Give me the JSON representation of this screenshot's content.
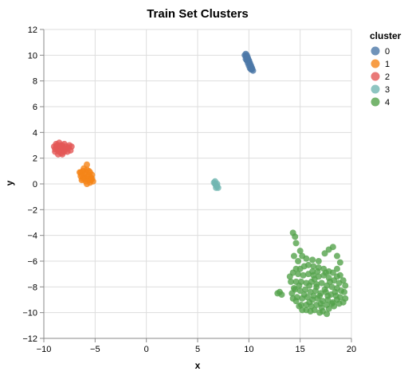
{
  "chart_data": {
    "type": "scatter",
    "title": "Train Set Clusters",
    "xlabel": "x",
    "ylabel": "y",
    "xlim": [
      -10,
      20
    ],
    "ylim": [
      -12,
      12
    ],
    "x_ticks": [
      -10,
      -5,
      0,
      5,
      10,
      15,
      20
    ],
    "y_ticks": [
      -12,
      -10,
      -8,
      -6,
      -4,
      -2,
      0,
      2,
      4,
      6,
      8,
      10,
      12
    ],
    "x_tick_labels": [
      "−10",
      "−5",
      "0",
      "5",
      "10",
      "15",
      "20"
    ],
    "y_tick_labels": [
      "−12",
      "−10",
      "−8",
      "−6",
      "−4",
      "−2",
      "0",
      "2",
      "4",
      "6",
      "8",
      "10",
      "12"
    ],
    "grid": true,
    "legend": {
      "title": "cluster",
      "position": "right",
      "entries": [
        "0",
        "1",
        "2",
        "3",
        "4"
      ]
    },
    "series": [
      {
        "name": "0",
        "color": "#4c78a8",
        "points": [
          [
            9.7,
            10.1
          ],
          [
            9.8,
            10.0
          ],
          [
            9.8,
            9.9
          ],
          [
            9.9,
            9.8
          ],
          [
            9.9,
            9.7
          ],
          [
            10.0,
            9.6
          ],
          [
            10.0,
            9.5
          ],
          [
            10.1,
            9.4
          ],
          [
            10.1,
            9.3
          ],
          [
            10.2,
            9.2
          ],
          [
            10.2,
            9.1
          ],
          [
            10.3,
            9.0
          ],
          [
            10.3,
            8.9
          ],
          [
            10.4,
            8.8
          ],
          [
            9.7,
            9.9
          ],
          [
            9.8,
            9.6
          ],
          [
            9.9,
            9.4
          ],
          [
            10.0,
            9.2
          ],
          [
            9.6,
            10.0
          ],
          [
            9.7,
            9.7
          ],
          [
            10.1,
            9.0
          ],
          [
            10.2,
            8.9
          ]
        ]
      },
      {
        "name": "1",
        "color": "#f58518",
        "points": [
          [
            -6.5,
            0.9
          ],
          [
            -6.4,
            0.6
          ],
          [
            -6.3,
            0.3
          ],
          [
            -6.2,
            1.0
          ],
          [
            -6.1,
            0.5
          ],
          [
            -6.0,
            0.8
          ],
          [
            -5.9,
            0.2
          ],
          [
            -5.8,
            1.1
          ],
          [
            -5.7,
            0.6
          ],
          [
            -5.6,
            0.3
          ],
          [
            -5.5,
            0.9
          ],
          [
            -5.4,
            0.5
          ],
          [
            -5.3,
            0.7
          ],
          [
            -5.2,
            0.2
          ],
          [
            -5.8,
            1.5
          ],
          [
            -6.1,
            1.2
          ],
          [
            -5.5,
            0.1
          ],
          [
            -5.7,
            0.4
          ],
          [
            -6.3,
            0.7
          ],
          [
            -6.0,
            0.4
          ],
          [
            -5.9,
            0.9
          ],
          [
            -5.6,
            0.7
          ],
          [
            -5.4,
            0.3
          ],
          [
            -6.2,
            0.4
          ],
          [
            -5.8,
            0.0
          ],
          [
            -5.3,
            0.4
          ],
          [
            -6.4,
            0.9
          ],
          [
            -5.6,
            1.0
          ]
        ]
      },
      {
        "name": "2",
        "color": "#e45756",
        "points": [
          [
            -9.0,
            2.9
          ],
          [
            -8.9,
            2.5
          ],
          [
            -8.8,
            3.1
          ],
          [
            -8.7,
            2.7
          ],
          [
            -8.6,
            2.3
          ],
          [
            -8.5,
            3.2
          ],
          [
            -8.4,
            2.8
          ],
          [
            -8.3,
            2.4
          ],
          [
            -8.2,
            3.0
          ],
          [
            -8.1,
            2.6
          ],
          [
            -8.0,
            3.1
          ],
          [
            -7.9,
            2.7
          ],
          [
            -7.8,
            2.9
          ],
          [
            -7.6,
            2.8
          ],
          [
            -7.4,
            2.6
          ],
          [
            -7.3,
            2.9
          ],
          [
            -8.6,
            2.6
          ],
          [
            -8.8,
            2.9
          ],
          [
            -8.4,
            3.0
          ],
          [
            -8.2,
            2.3
          ],
          [
            -8.0,
            2.5
          ],
          [
            -8.5,
            2.5
          ],
          [
            -8.7,
            3.0
          ],
          [
            -8.3,
            2.9
          ],
          [
            -7.7,
            2.5
          ],
          [
            -8.9,
            2.7
          ],
          [
            -8.1,
            2.8
          ],
          [
            -7.5,
            3.0
          ]
        ]
      },
      {
        "name": "3",
        "color": "#72b7b2",
        "points": [
          [
            6.6,
            0.1
          ],
          [
            6.7,
            0.0
          ],
          [
            6.8,
            -0.1
          ],
          [
            6.9,
            -0.2
          ],
          [
            7.0,
            -0.3
          ],
          [
            6.7,
            0.2
          ],
          [
            6.8,
            -0.3
          ],
          [
            6.9,
            0.0
          ]
        ]
      },
      {
        "name": "4",
        "color": "#54a24b",
        "points": [
          [
            14.3,
            -3.8
          ],
          [
            14.5,
            -4.1
          ],
          [
            14.6,
            -4.6
          ],
          [
            15.0,
            -5.2
          ],
          [
            14.4,
            -5.6
          ],
          [
            15.2,
            -5.6
          ],
          [
            14.8,
            -6.0
          ],
          [
            15.6,
            -5.8
          ],
          [
            16.2,
            -5.9
          ],
          [
            16.8,
            -6.0
          ],
          [
            17.4,
            -5.4
          ],
          [
            17.8,
            -5.1
          ],
          [
            18.2,
            -4.9
          ],
          [
            18.6,
            -5.6
          ],
          [
            18.9,
            -6.1
          ],
          [
            18.6,
            -6.6
          ],
          [
            18.9,
            -7.1
          ],
          [
            19.2,
            -7.5
          ],
          [
            19.4,
            -7.9
          ],
          [
            19.3,
            -8.4
          ],
          [
            19.4,
            -8.9
          ],
          [
            19.2,
            -9.2
          ],
          [
            18.8,
            -9.3
          ],
          [
            18.3,
            -9.5
          ],
          [
            17.8,
            -9.7
          ],
          [
            17.6,
            -10.1
          ],
          [
            17.2,
            -9.9
          ],
          [
            16.9,
            -10.0
          ],
          [
            16.4,
            -9.8
          ],
          [
            16.0,
            -9.9
          ],
          [
            15.6,
            -9.8
          ],
          [
            15.2,
            -9.8
          ],
          [
            14.9,
            -9.5
          ],
          [
            14.6,
            -9.1
          ],
          [
            14.3,
            -8.9
          ],
          [
            14.2,
            -8.5
          ],
          [
            14.4,
            -8.1
          ],
          [
            14.1,
            -7.6
          ],
          [
            14.0,
            -7.2
          ],
          [
            14.3,
            -6.9
          ],
          [
            14.6,
            -6.6
          ],
          [
            12.8,
            -8.5
          ],
          [
            13.0,
            -8.4
          ],
          [
            13.2,
            -8.6
          ],
          [
            15.0,
            -6.6
          ],
          [
            15.4,
            -6.4
          ],
          [
            15.8,
            -6.3
          ],
          [
            16.3,
            -6.4
          ],
          [
            16.8,
            -6.5
          ],
          [
            17.3,
            -6.6
          ],
          [
            17.8,
            -6.8
          ],
          [
            18.2,
            -6.9
          ],
          [
            18.6,
            -7.2
          ],
          [
            14.8,
            -7.0
          ],
          [
            15.3,
            -7.1
          ],
          [
            15.8,
            -7.0
          ],
          [
            16.3,
            -7.1
          ],
          [
            16.8,
            -7.2
          ],
          [
            17.3,
            -7.1
          ],
          [
            17.8,
            -7.3
          ],
          [
            18.3,
            -7.5
          ],
          [
            18.8,
            -7.7
          ],
          [
            14.6,
            -7.6
          ],
          [
            15.1,
            -7.6
          ],
          [
            15.6,
            -7.7
          ],
          [
            16.1,
            -7.6
          ],
          [
            16.6,
            -7.8
          ],
          [
            17.1,
            -7.7
          ],
          [
            17.6,
            -7.9
          ],
          [
            18.1,
            -8.0
          ],
          [
            18.6,
            -8.1
          ],
          [
            19.0,
            -8.3
          ],
          [
            14.5,
            -8.2
          ],
          [
            15.0,
            -8.3
          ],
          [
            15.5,
            -8.2
          ],
          [
            16.0,
            -8.4
          ],
          [
            16.5,
            -8.3
          ],
          [
            17.0,
            -8.5
          ],
          [
            17.5,
            -8.4
          ],
          [
            18.0,
            -8.6
          ],
          [
            18.5,
            -8.7
          ],
          [
            18.9,
            -8.8
          ],
          [
            14.7,
            -8.8
          ],
          [
            15.2,
            -8.9
          ],
          [
            15.7,
            -8.8
          ],
          [
            16.2,
            -9.0
          ],
          [
            16.7,
            -8.9
          ],
          [
            17.2,
            -9.1
          ],
          [
            17.7,
            -9.0
          ],
          [
            18.2,
            -9.2
          ],
          [
            18.6,
            -9.0
          ],
          [
            15.1,
            -9.4
          ],
          [
            15.6,
            -9.4
          ],
          [
            16.1,
            -9.5
          ],
          [
            16.6,
            -9.4
          ],
          [
            17.1,
            -9.6
          ],
          [
            17.6,
            -9.4
          ],
          [
            18.1,
            -9.3
          ],
          [
            16.2,
            -6.8
          ],
          [
            16.4,
            -7.4
          ],
          [
            16.6,
            -8.0
          ],
          [
            16.9,
            -8.7
          ],
          [
            17.0,
            -9.3
          ],
          [
            15.9,
            -7.9
          ],
          [
            17.4,
            -8.2
          ],
          [
            17.9,
            -7.6
          ],
          [
            15.4,
            -8.6
          ],
          [
            16.3,
            -8.7
          ],
          [
            17.5,
            -6.9
          ],
          [
            18.4,
            -8.4
          ],
          [
            14.9,
            -7.9
          ],
          [
            15.9,
            -9.2
          ],
          [
            16.7,
            -6.8
          ],
          [
            17.7,
            -8.7
          ]
        ]
      }
    ]
  }
}
